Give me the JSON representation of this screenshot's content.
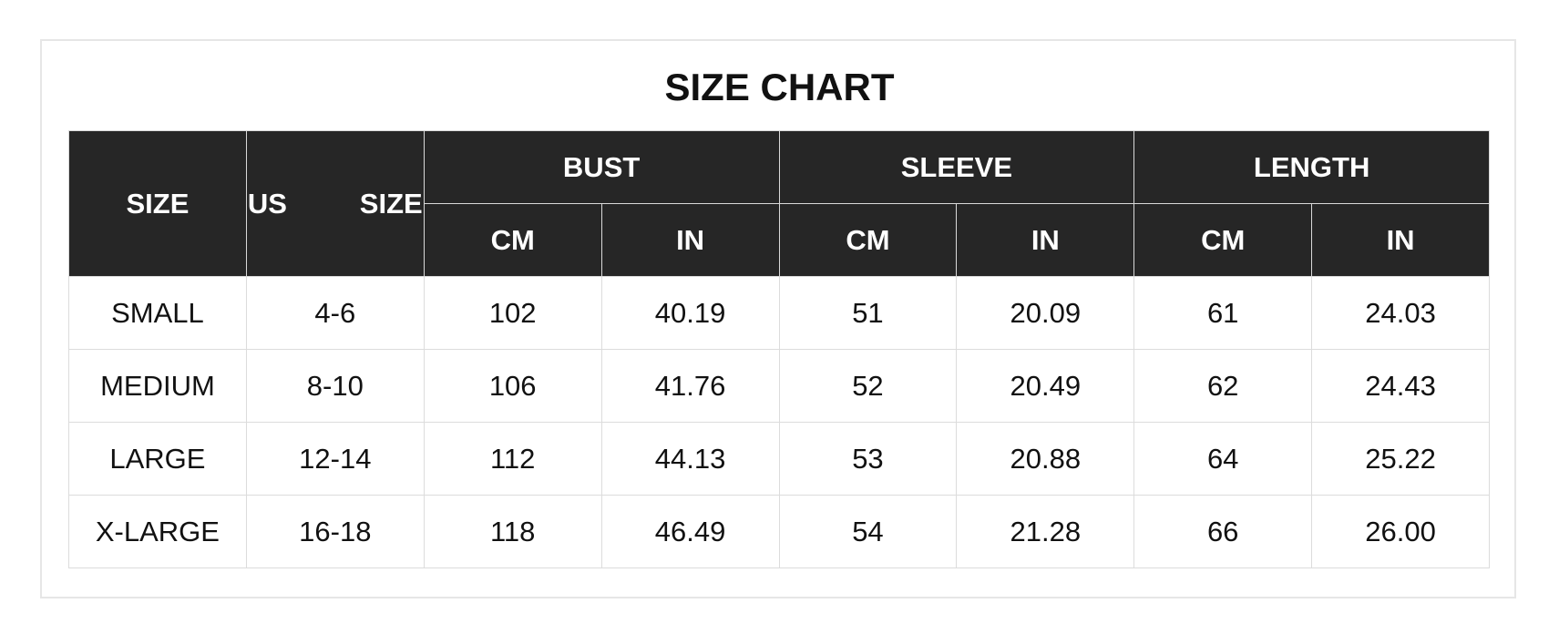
{
  "title": "SIZE CHART",
  "header": {
    "size": "SIZE",
    "us_size": "US   SIZE",
    "groups": [
      "BUST",
      "SLEEVE",
      "LENGTH"
    ],
    "units": [
      "CM",
      "IN",
      "CM",
      "IN",
      "CM",
      "IN"
    ]
  },
  "rows": [
    [
      "SMALL",
      "4-6",
      "102",
      "40.19",
      "51",
      "20.09",
      "61",
      "24.03"
    ],
    [
      "MEDIUM",
      "8-10",
      "106",
      "41.76",
      "52",
      "20.49",
      "62",
      "24.43"
    ],
    [
      "LARGE",
      "12-14",
      "112",
      "44.13",
      "53",
      "20.88",
      "64",
      "25.22"
    ],
    [
      "X-LARGE",
      "16-18",
      "118",
      "46.49",
      "54",
      "21.28",
      "66",
      "26.00"
    ]
  ],
  "colors": {
    "header_bg": "#262626",
    "header_text": "#ffffff",
    "grid": "#dcdcdc"
  }
}
